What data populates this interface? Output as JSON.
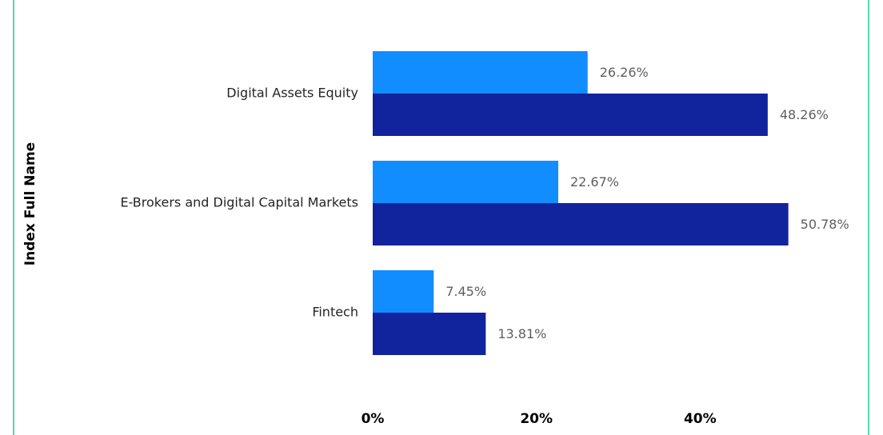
{
  "chart_data": {
    "type": "bar",
    "orientation": "horizontal",
    "y_axis_label": "Index Full Name",
    "categories": [
      "Digital Assets Equity",
      "E-Brokers and Digital Capital Markets",
      "Fintech"
    ],
    "series": [
      {
        "color": "#118dff",
        "values": [
          26.26,
          22.67,
          7.45
        ],
        "value_labels": [
          "26.26%",
          "22.67%",
          "7.45%"
        ]
      },
      {
        "color": "#12239e",
        "values": [
          48.26,
          50.78,
          13.81
        ],
        "value_labels": [
          "48.26%",
          "50.78%",
          "13.81%"
        ]
      }
    ],
    "xlim": [
      0,
      60
    ],
    "xticks": [
      {
        "value": 0,
        "label": "0%"
      },
      {
        "value": 20,
        "label": "20%"
      },
      {
        "value": 40,
        "label": "40%"
      }
    ],
    "grid": false
  }
}
